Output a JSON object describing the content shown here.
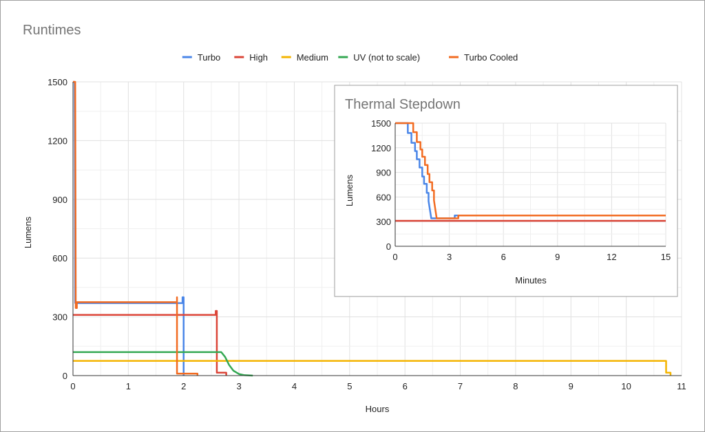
{
  "chart_data": [
    {
      "type": "line",
      "title": "Runtimes",
      "xlabel": "Hours",
      "ylabel": "Lumens",
      "xlim": [
        0,
        11
      ],
      "ylim": [
        0,
        1500
      ],
      "xticks": [
        "0",
        "1",
        "2",
        "3",
        "4",
        "5",
        "6",
        "7",
        "8",
        "9",
        "10",
        "11"
      ],
      "yticks": [
        "0",
        "300",
        "600",
        "900",
        "1200",
        "1500"
      ],
      "grid": true,
      "legend_position": "top",
      "series": [
        {
          "name": "Turbo",
          "color": "#4a86e8",
          "points": [
            [
              0,
              1500
            ],
            [
              0.03,
              1500
            ],
            [
              0.04,
              370
            ],
            [
              1.98,
              370
            ],
            [
              1.98,
              400
            ],
            [
              2.0,
              400
            ],
            [
              2.0,
              0
            ]
          ]
        },
        {
          "name": "High",
          "color": "#db4437",
          "points": [
            [
              0,
              310
            ],
            [
              2.58,
              310
            ],
            [
              2.58,
              330
            ],
            [
              2.6,
              330
            ],
            [
              2.6,
              15
            ],
            [
              2.77,
              15
            ],
            [
              2.77,
              0
            ]
          ]
        },
        {
          "name": "Medium",
          "color": "#f4b400",
          "points": [
            [
              0,
              75
            ],
            [
              10.72,
              75
            ],
            [
              10.72,
              15
            ],
            [
              10.8,
              15
            ],
            [
              10.8,
              0
            ]
          ]
        },
        {
          "name": "UV (not to scale)",
          "color": "#34a853",
          "points": [
            [
              0,
              120
            ],
            [
              2.68,
              120
            ],
            [
              2.75,
              95
            ],
            [
              2.82,
              55
            ],
            [
              2.9,
              25
            ],
            [
              3.0,
              8
            ],
            [
              3.1,
              2
            ],
            [
              3.25,
              0
            ]
          ]
        },
        {
          "name": "Turbo Cooled",
          "color": "#f26b21",
          "points": [
            [
              0,
              1500
            ],
            [
              0.04,
              1500
            ],
            [
              0.05,
              345
            ],
            [
              0.07,
              345
            ],
            [
              0.07,
              375
            ],
            [
              1.88,
              375
            ],
            [
              1.88,
              400
            ],
            [
              1.88,
              10
            ],
            [
              2.25,
              10
            ],
            [
              2.25,
              0
            ]
          ]
        }
      ]
    },
    {
      "type": "line",
      "title": "Thermal Stepdown",
      "xlabel": "Minutes",
      "ylabel": "Lumens",
      "xlim": [
        0,
        15
      ],
      "ylim": [
        0,
        1500
      ],
      "xticks": [
        "0",
        "3",
        "6",
        "9",
        "12",
        "15"
      ],
      "yticks": [
        "0",
        "300",
        "600",
        "900",
        "1200",
        "1500"
      ],
      "grid": true,
      "series": [
        {
          "name": "Turbo",
          "color": "#4a86e8",
          "points": [
            [
              0,
              1500
            ],
            [
              0.7,
              1500
            ],
            [
              0.7,
              1380
            ],
            [
              0.9,
              1380
            ],
            [
              0.9,
              1260
            ],
            [
              1.1,
              1260
            ],
            [
              1.1,
              1160
            ],
            [
              1.2,
              1160
            ],
            [
              1.2,
              1060
            ],
            [
              1.35,
              1060
            ],
            [
              1.35,
              960
            ],
            [
              1.5,
              960
            ],
            [
              1.5,
              850
            ],
            [
              1.6,
              850
            ],
            [
              1.6,
              760
            ],
            [
              1.75,
              760
            ],
            [
              1.75,
              650
            ],
            [
              1.85,
              650
            ],
            [
              1.85,
              550
            ],
            [
              2.0,
              340
            ],
            [
              3.3,
              340
            ],
            [
              3.3,
              375
            ],
            [
              15,
              375
            ]
          ]
        },
        {
          "name": "High",
          "color": "#db4437",
          "points": [
            [
              0,
              310
            ],
            [
              15,
              310
            ]
          ]
        },
        {
          "name": "Turbo Cooled",
          "color": "#f26b21",
          "points": [
            [
              0,
              1500
            ],
            [
              1.0,
              1500
            ],
            [
              1.0,
              1390
            ],
            [
              1.2,
              1390
            ],
            [
              1.2,
              1270
            ],
            [
              1.4,
              1270
            ],
            [
              1.4,
              1180
            ],
            [
              1.5,
              1180
            ],
            [
              1.5,
              1090
            ],
            [
              1.65,
              1090
            ],
            [
              1.65,
              990
            ],
            [
              1.8,
              990
            ],
            [
              1.8,
              880
            ],
            [
              1.9,
              880
            ],
            [
              1.9,
              780
            ],
            [
              2.05,
              780
            ],
            [
              2.05,
              680
            ],
            [
              2.15,
              680
            ],
            [
              2.15,
              560
            ],
            [
              2.3,
              340
            ],
            [
              3.5,
              340
            ],
            [
              3.5,
              375
            ],
            [
              15,
              375
            ]
          ]
        }
      ]
    }
  ]
}
